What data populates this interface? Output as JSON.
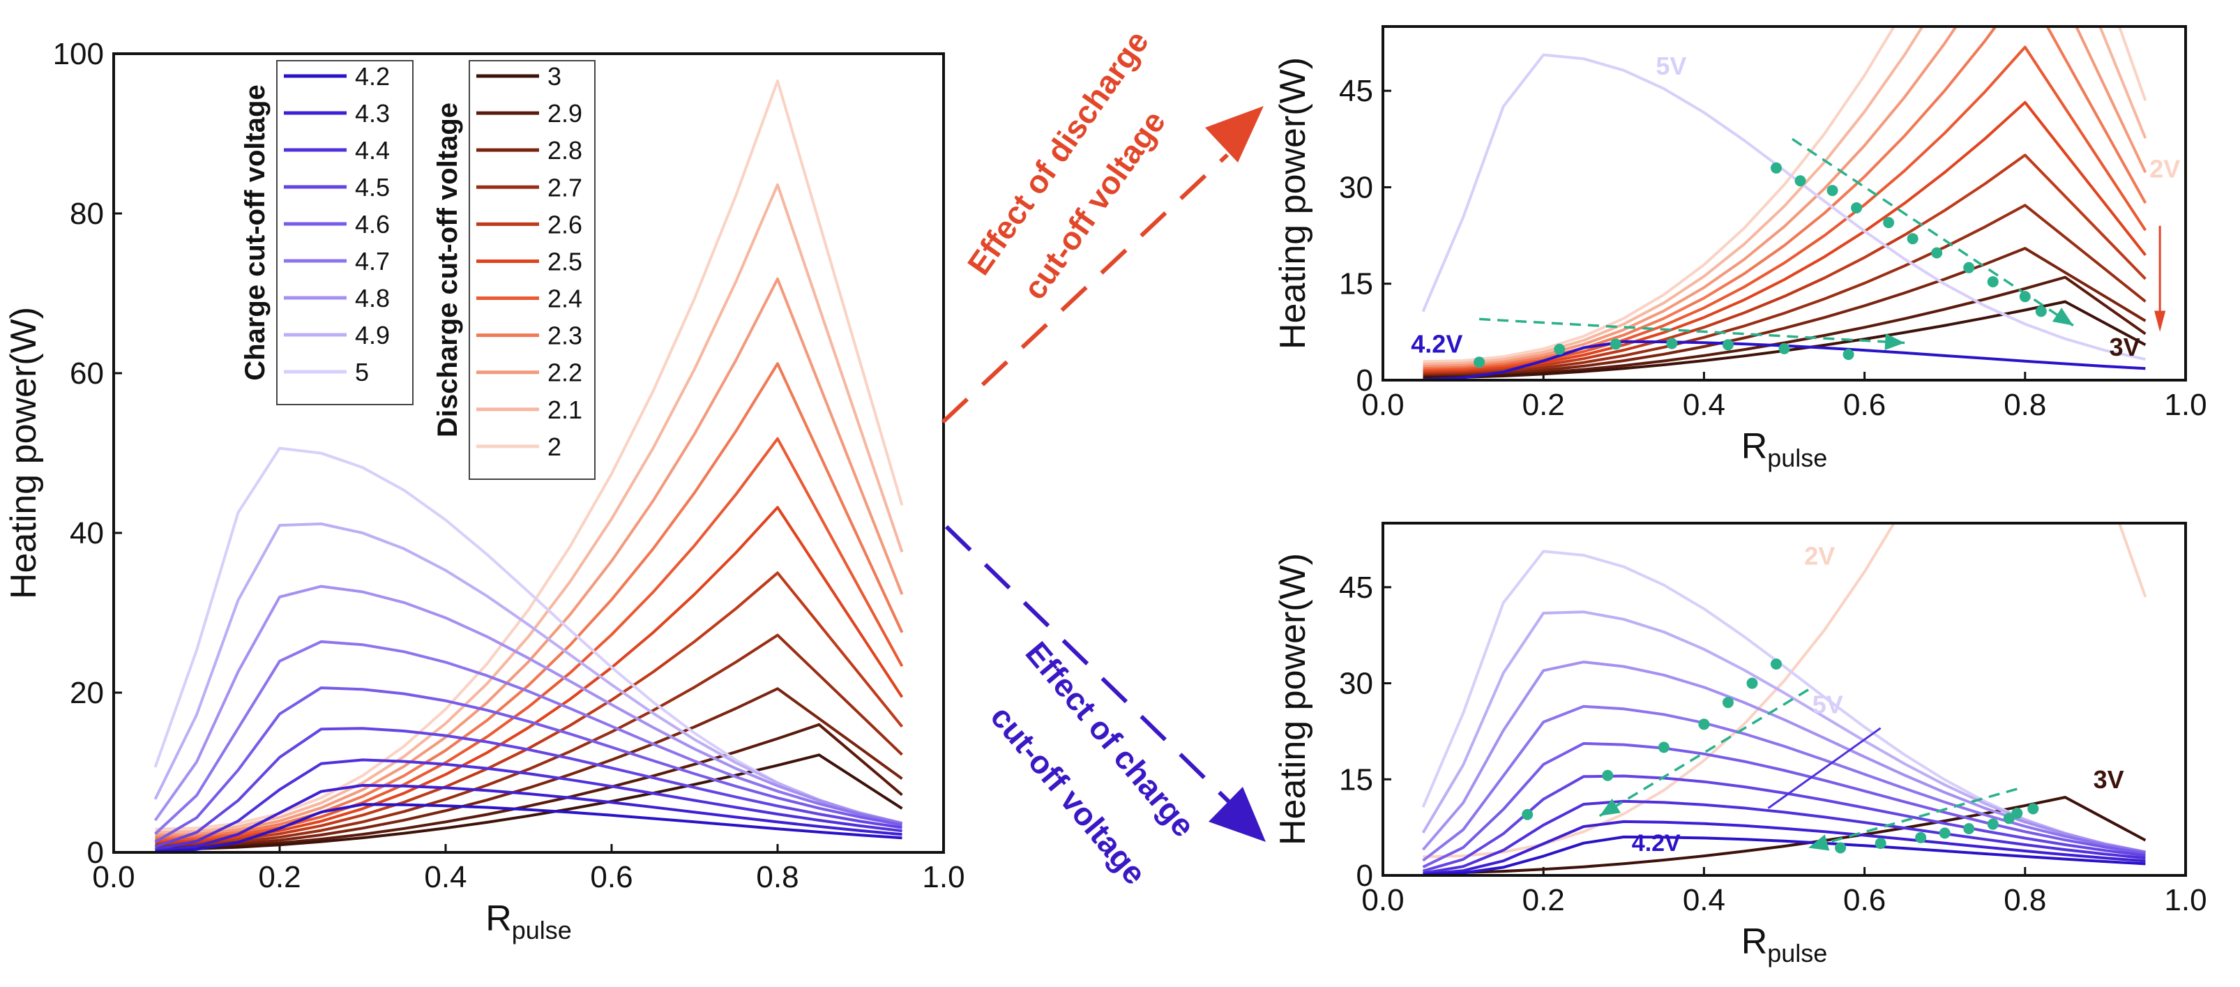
{
  "chart_data": [
    {
      "panel": "main",
      "type": "line",
      "xlabel": "R",
      "xlabel_sub": "pulse",
      "ylabel": "Heating power(W)",
      "xlim": [
        0.0,
        1.0
      ],
      "ylim": [
        0,
        100
      ],
      "xticks": [
        "0.0",
        "0.2",
        "0.4",
        "0.6",
        "0.8",
        "1.0"
      ],
      "yticks": [
        "0",
        "20",
        "40",
        "60",
        "80",
        "100"
      ],
      "x": [
        0.05,
        0.1,
        0.15,
        0.2,
        0.25,
        0.3,
        0.35,
        0.4,
        0.45,
        0.5,
        0.55,
        0.6,
        0.65,
        0.7,
        0.75,
        0.8,
        0.85,
        0.9,
        0.95
      ],
      "legend_charge": {
        "title": "Charge cut-off voltage",
        "series": [
          {
            "name": "4.2",
            "color": "#2a12c8",
            "peak": 6.0
          },
          {
            "name": "4.3",
            "color": "#3f1fd3",
            "peak": 8.4
          },
          {
            "name": "4.4",
            "color": "#5030db",
            "peak": 11.6
          },
          {
            "name": "4.5",
            "color": "#6444e2",
            "peak": 15.6
          },
          {
            "name": "4.6",
            "color": "#785be8",
            "peak": 20.6
          },
          {
            "name": "4.7",
            "color": "#8d74ed",
            "peak": 26.4
          },
          {
            "name": "4.8",
            "color": "#a590f1",
            "peak": 33.4
          },
          {
            "name": "4.9",
            "color": "#bdaef5",
            "peak": 41.4
          },
          {
            "name": "5",
            "color": "#d8cffa",
            "peak": 50.6
          }
        ]
      },
      "legend_discharge": {
        "title": "Discharge cut-off voltage",
        "series": [
          {
            "name": "3",
            "color": "#3d120a",
            "peak": 12.2
          },
          {
            "name": "2.9",
            "color": "#5a1a0c",
            "peak": 16.0
          },
          {
            "name": "2.8",
            "color": "#7a2410",
            "peak": 20.5
          },
          {
            "name": "2.7",
            "color": "#9a2e14",
            "peak": 27.2
          },
          {
            "name": "2.6",
            "color": "#bf3a1a",
            "peak": 35.0
          },
          {
            "name": "2.5",
            "color": "#e0441f",
            "peak": 43.2
          },
          {
            "name": "2.4",
            "color": "#ea5a33",
            "peak": 51.8
          },
          {
            "name": "2.3",
            "color": "#f07a55",
            "peak": 61.2
          },
          {
            "name": "2.2",
            "color": "#f49a7c",
            "peak": 71.8
          },
          {
            "name": "2.1",
            "color": "#f7b7a0",
            "peak": 83.6
          },
          {
            "name": "2",
            "color": "#fad3c4",
            "peak": 96.6
          }
        ]
      }
    },
    {
      "panel": "top-right",
      "type": "line",
      "xlabel": "R",
      "xlabel_sub": "pulse",
      "ylabel": "Heating power(W)",
      "xlim": [
        0.0,
        1.0
      ],
      "ylim": [
        0,
        55
      ],
      "xticks": [
        "0.0",
        "0.2",
        "0.4",
        "0.6",
        "0.8",
        "1.0"
      ],
      "yticks": [
        "0",
        "15",
        "30",
        "45"
      ],
      "labels": {
        "five_v": "5V",
        "two_v": "2V",
        "four_two_v": "4.2V",
        "three_v": "3V"
      },
      "markers_discharge_trend": [
        [
          0.49,
          33.0
        ],
        [
          0.52,
          31.0
        ],
        [
          0.56,
          29.5
        ],
        [
          0.59,
          26.8
        ],
        [
          0.63,
          24.5
        ],
        [
          0.66,
          22.0
        ],
        [
          0.69,
          19.8
        ],
        [
          0.73,
          17.5
        ],
        [
          0.76,
          15.3
        ],
        [
          0.8,
          13.0
        ],
        [
          0.82,
          10.7
        ]
      ],
      "markers_charge_trend": [
        [
          0.12,
          2.8
        ],
        [
          0.22,
          4.8
        ],
        [
          0.29,
          5.6
        ],
        [
          0.36,
          5.7
        ],
        [
          0.43,
          5.5
        ],
        [
          0.5,
          4.9
        ],
        [
          0.58,
          4.0
        ]
      ]
    },
    {
      "panel": "bottom-right",
      "type": "line",
      "xlabel": "R",
      "xlabel_sub": "pulse",
      "ylabel": "Heating power(W)",
      "xlim": [
        0.0,
        1.0
      ],
      "ylim": [
        0,
        55
      ],
      "xticks": [
        "0.0",
        "0.2",
        "0.4",
        "0.6",
        "0.8",
        "1.0"
      ],
      "yticks": [
        "0",
        "15",
        "30",
        "45"
      ],
      "labels": {
        "five_v": "5V",
        "two_v": "2V",
        "four_two_v": "4.2V",
        "three_v": "3V"
      },
      "markers_charge_trend": [
        [
          0.49,
          33.0
        ],
        [
          0.46,
          30.0
        ],
        [
          0.43,
          27.0
        ],
        [
          0.4,
          23.6
        ],
        [
          0.35,
          20.0
        ],
        [
          0.28,
          15.6
        ],
        [
          0.18,
          9.5
        ]
      ],
      "markers_discharge_trend": [
        [
          0.57,
          4.3
        ],
        [
          0.62,
          5.0
        ],
        [
          0.67,
          5.9
        ],
        [
          0.7,
          6.6
        ],
        [
          0.73,
          7.3
        ],
        [
          0.76,
          8.0
        ],
        [
          0.78,
          8.9
        ],
        [
          0.79,
          9.7
        ],
        [
          0.81,
          10.4
        ]
      ]
    }
  ],
  "annotations": {
    "top_arrow_line1": "Effect of discharge",
    "top_arrow_line2": "cut-off voltage",
    "bottom_arrow_line1": "Effect of charge",
    "bottom_arrow_line2": "cut-off voltage"
  },
  "colors": {
    "marker": "#2bb08c",
    "top_arrow": "#e2472a",
    "bottom_arrow": "#3a18c6",
    "axis": "#111111"
  }
}
